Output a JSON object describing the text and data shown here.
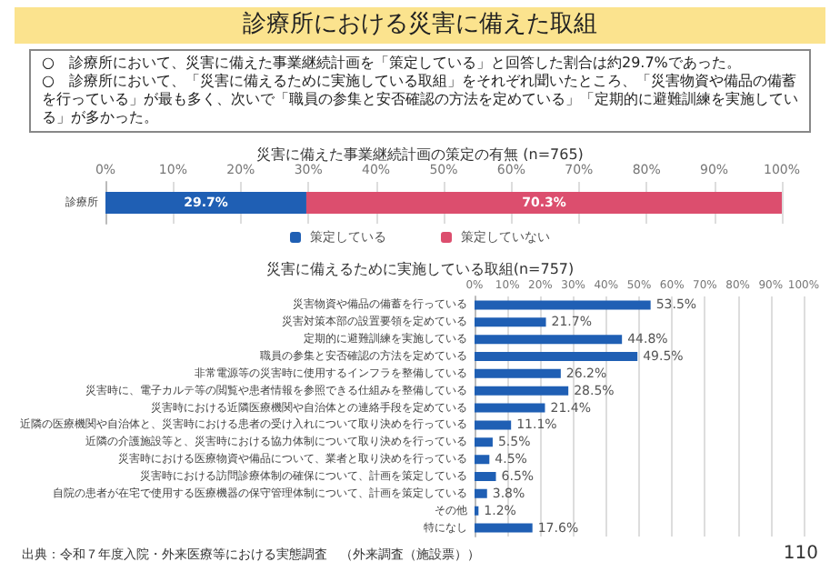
{
  "chart_data": [
    {
      "type": "other",
      "title": "診療所における災害に備えた取組",
      "annotations": [
        "○　診療所において、災害に備えた事業継続計画を「策定している」と回答した割合は約29.7%であった。",
        "○　診療所において、「災害に備えるために実施している取組」をそれぞれ聞いたところ、「災害物資や備品の備蓄を行っている」が最も多く、次いで「職員の参集と安否確認の方法を定めている」「定期的に避難訓練を実施している」が多かった。"
      ]
    },
    {
      "type": "bar",
      "title": "災害に備えた事業継続計画の策定の有無 (n=765)",
      "orientation": "horizontal",
      "stacked": true,
      "categories": [
        "診療所"
      ],
      "series": [
        {
          "name": "策定している",
          "color": "#1f5fb4",
          "values": [
            29.7
          ],
          "value_labels": [
            "29.7%"
          ]
        },
        {
          "name": "策定していない",
          "color": "#dc4e6e",
          "values": [
            70.3
          ],
          "value_labels": [
            "70.3%"
          ]
        }
      ],
      "xlim": [
        0,
        100
      ],
      "xticks": [
        {
          "value": 0,
          "label": "0%"
        },
        {
          "value": 10,
          "label": "10%"
        },
        {
          "value": 20,
          "label": "20%"
        },
        {
          "value": 30,
          "label": "30%"
        },
        {
          "value": 40,
          "label": "40%"
        },
        {
          "value": 50,
          "label": "50%"
        },
        {
          "value": 60,
          "label": "60%"
        },
        {
          "value": 70,
          "label": "70%"
        },
        {
          "value": 80,
          "label": "80%"
        },
        {
          "value": 90,
          "label": "90%"
        },
        {
          "value": 100,
          "label": "100%"
        }
      ],
      "grid": "x",
      "legend": "bottom"
    },
    {
      "type": "bar",
      "title": "災害に備えるために実施している取組(n=757)",
      "orientation": "horizontal",
      "categories": [
        "災害物資や備品の備蓄を行っている",
        "災害対策本部の設置要領を定めている",
        "定期的に避難訓練を実施している",
        "職員の参集と安否確認の方法を定めている",
        "非常電源等の災害時に使用するインフラを整備している",
        "災害時に、電子カルテ等の閲覧や患者情報を参照できる仕組みを整備している",
        "災害時における近隣医療機関や自治体との連絡手段を定めている",
        "近隣の医療機関や自治体と、災害時における患者の受け入れについて取り決めを行っている",
        "近隣の介護施設等と、災害時における協力体制について取り決めを行っている",
        "災害時における医療物資や備品について、業者と取り決めを行っている",
        "災害時における訪問診療体制の確保について、計画を策定している",
        "自院の患者が在宅で使用する医療機器の保守管理体制について、計画を策定している",
        "その他",
        "特になし"
      ],
      "series": [
        {
          "color": "#1f5fb4",
          "values": [
            53.5,
            21.7,
            44.8,
            49.5,
            26.2,
            28.5,
            21.4,
            11.1,
            5.5,
            4.5,
            6.5,
            3.8,
            1.2,
            17.6
          ],
          "value_labels": [
            "53.5%",
            "21.7%",
            "44.8%",
            "49.5%",
            "26.2%",
            "28.5%",
            "21.4%",
            "11.1%",
            "5.5%",
            "4.5%",
            "6.5%",
            "3.8%",
            "1.2%",
            "17.6%"
          ]
        }
      ],
      "xlim": [
        0,
        100
      ],
      "xticks": [
        {
          "value": 0,
          "label": "0%"
        },
        {
          "value": 10,
          "label": "10%"
        },
        {
          "value": 20,
          "label": "20%"
        },
        {
          "value": 30,
          "label": "30%"
        },
        {
          "value": 40,
          "label": "40%"
        },
        {
          "value": 50,
          "label": "50%"
        },
        {
          "value": 60,
          "label": "60%"
        },
        {
          "value": 70,
          "label": "70%"
        },
        {
          "value": 80,
          "label": "80%"
        },
        {
          "value": 90,
          "label": "90%"
        },
        {
          "value": 100,
          "label": "100%"
        }
      ],
      "grid": "x",
      "annotations": [
        "出典：令和７年度入院・外来医療等における実態調査　（外来調査（施設票））",
        "110"
      ]
    }
  ]
}
